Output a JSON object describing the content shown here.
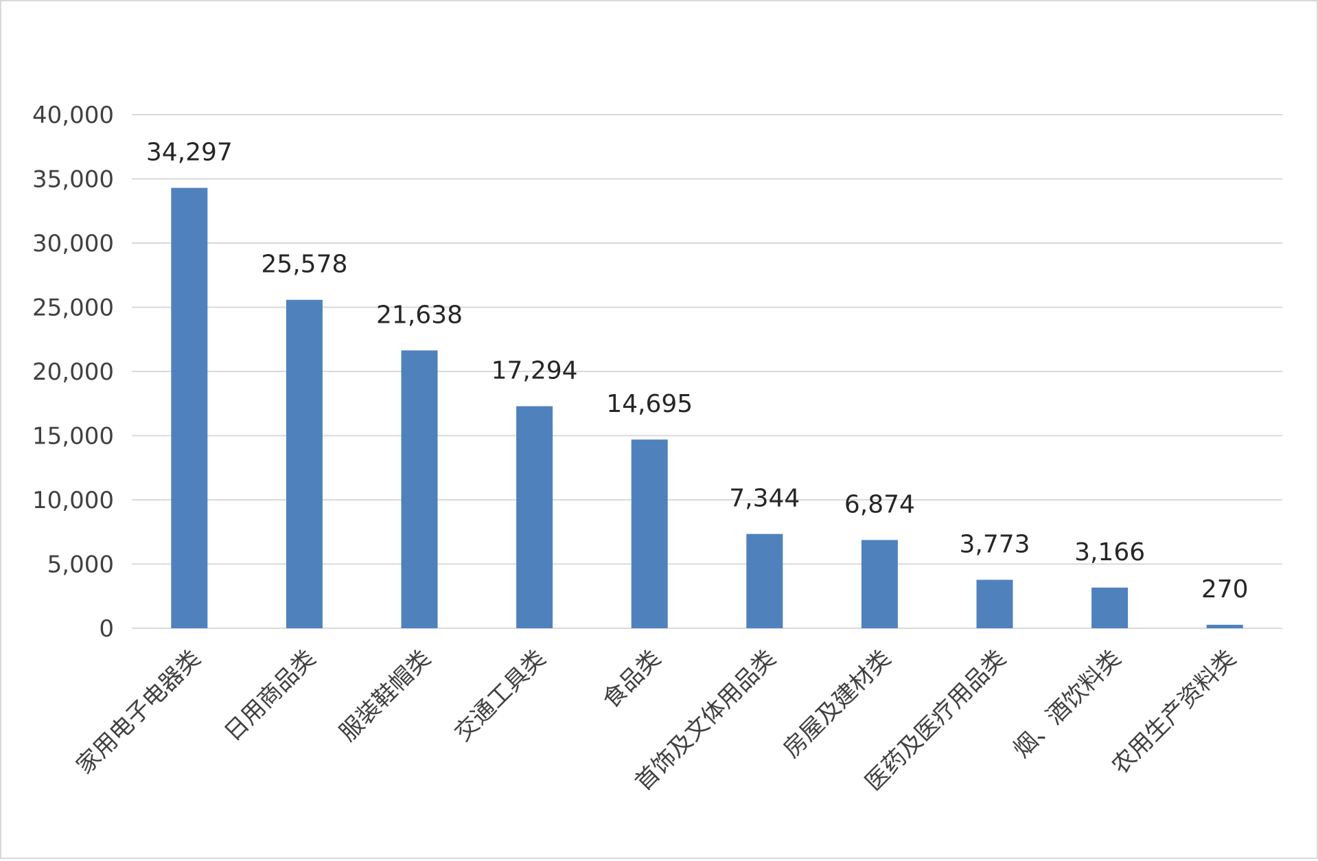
{
  "chart_data": {
    "type": "bar",
    "categories": [
      "家用电子电器类",
      "日用商品类",
      "服装鞋帽类",
      "交通工具类",
      "食品类",
      "首饰及文体用品类",
      "房屋及建材类",
      "医药及医疗用品类",
      "烟、酒饮料类",
      "农用生产资料类"
    ],
    "values": [
      34297,
      25578,
      21638,
      17294,
      14695,
      7344,
      6874,
      3773,
      3166,
      270
    ],
    "data_labels": [
      "34,297",
      "25,578",
      "21,638",
      "17,294",
      "14,695",
      "7,344",
      "6,874",
      "3,773",
      "3,166",
      "270"
    ],
    "y_ticks": [
      0,
      5000,
      10000,
      15000,
      20000,
      25000,
      30000,
      35000,
      40000
    ],
    "y_tick_labels": [
      "0",
      "5,000",
      "10,000",
      "15,000",
      "20,000",
      "25,000",
      "30,000",
      "35,000",
      "40,000"
    ],
    "ylim": [
      0,
      40000
    ],
    "title": "",
    "xlabel": "",
    "ylabel": "",
    "grid": true,
    "legend": "none",
    "bar_color": "#4f81bd"
  }
}
